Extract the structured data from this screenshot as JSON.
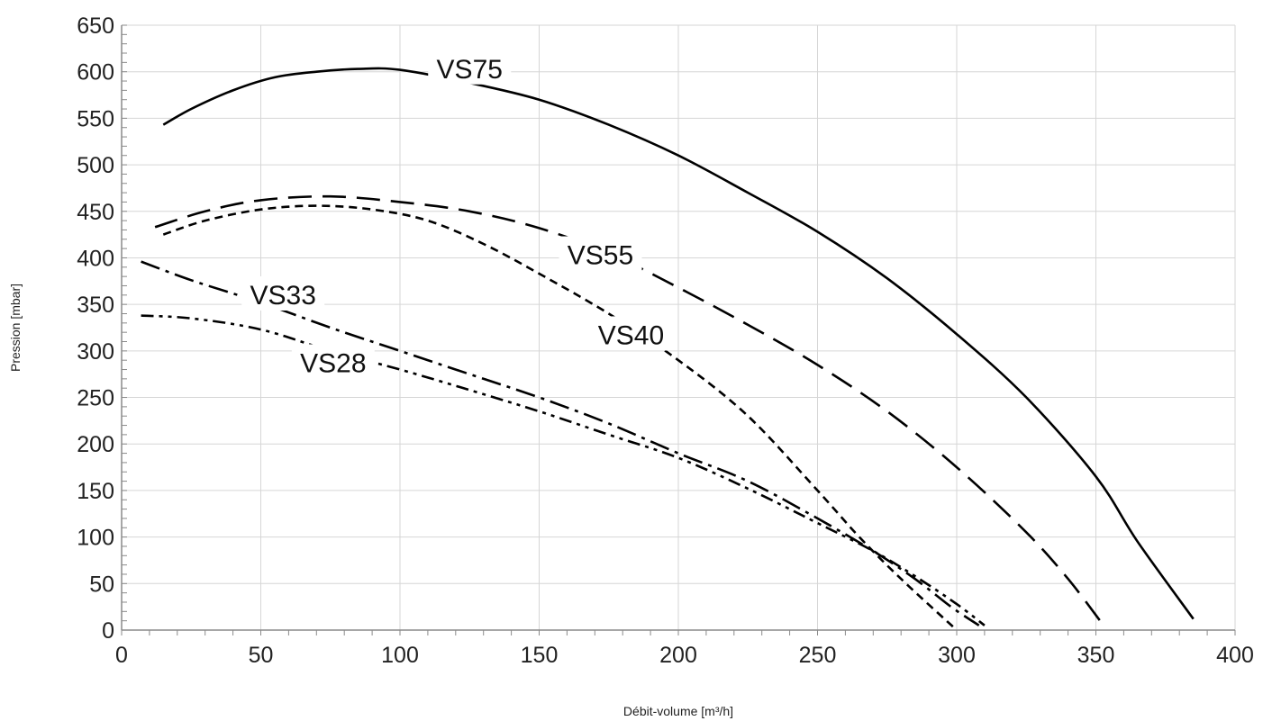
{
  "chart_data": {
    "type": "line",
    "title": "",
    "xlabel": "Débit-volume [m³/h]",
    "ylabel": "Pression [mbar]",
    "xlim": [
      0,
      400
    ],
    "ylim": [
      0,
      650
    ],
    "x_ticks": [
      0,
      50,
      100,
      150,
      200,
      250,
      300,
      350,
      400
    ],
    "y_ticks": [
      0,
      50,
      100,
      150,
      200,
      250,
      300,
      350,
      400,
      450,
      500,
      550,
      600,
      650
    ],
    "grid": true,
    "legend": "none",
    "series": [
      {
        "name": "VS75",
        "style": "solid",
        "label_at": [
          125,
          598
        ],
        "points": [
          [
            15,
            543
          ],
          [
            25,
            560
          ],
          [
            40,
            580
          ],
          [
            55,
            594
          ],
          [
            70,
            600
          ],
          [
            85,
            603
          ],
          [
            100,
            602
          ],
          [
            125,
            588
          ],
          [
            150,
            570
          ],
          [
            175,
            543
          ],
          [
            200,
            510
          ],
          [
            225,
            470
          ],
          [
            250,
            428
          ],
          [
            275,
            378
          ],
          [
            300,
            318
          ],
          [
            325,
            250
          ],
          [
            350,
            165
          ],
          [
            365,
            95
          ],
          [
            385,
            12
          ]
        ]
      },
      {
        "name": "VS55",
        "style": "long-dash",
        "label_at": [
          172,
          398
        ],
        "points": [
          [
            12,
            433
          ],
          [
            30,
            450
          ],
          [
            50,
            462
          ],
          [
            75,
            466
          ],
          [
            100,
            460
          ],
          [
            125,
            450
          ],
          [
            150,
            432
          ],
          [
            175,
            405
          ],
          [
            200,
            368
          ],
          [
            225,
            328
          ],
          [
            250,
            285
          ],
          [
            275,
            235
          ],
          [
            300,
            175
          ],
          [
            325,
            105
          ],
          [
            340,
            55
          ],
          [
            352,
            8
          ]
        ]
      },
      {
        "name": "VS40",
        "style": "short-dash",
        "label_at": [
          183,
          312
        ],
        "points": [
          [
            15,
            425
          ],
          [
            30,
            440
          ],
          [
            50,
            452
          ],
          [
            70,
            456
          ],
          [
            90,
            452
          ],
          [
            110,
            440
          ],
          [
            130,
            415
          ],
          [
            150,
            383
          ],
          [
            175,
            340
          ],
          [
            200,
            290
          ],
          [
            225,
            230
          ],
          [
            250,
            150
          ],
          [
            265,
            100
          ],
          [
            280,
            55
          ],
          [
            300,
            0
          ]
        ]
      },
      {
        "name": "VS33",
        "style": "dash-dot",
        "label_at": [
          58,
          355
        ],
        "points": [
          [
            7,
            396
          ],
          [
            25,
            376
          ],
          [
            50,
            352
          ],
          [
            75,
            325
          ],
          [
            100,
            300
          ],
          [
            125,
            275
          ],
          [
            150,
            250
          ],
          [
            175,
            222
          ],
          [
            200,
            190
          ],
          [
            225,
            160
          ],
          [
            250,
            120
          ],
          [
            270,
            85
          ],
          [
            285,
            55
          ],
          [
            298,
            25
          ],
          [
            308,
            5
          ]
        ]
      },
      {
        "name": "VS28",
        "style": "dash-dot-dot",
        "label_at": [
          76,
          282
        ],
        "points": [
          [
            7,
            338
          ],
          [
            25,
            335
          ],
          [
            50,
            323
          ],
          [
            75,
            300
          ],
          [
            100,
            280
          ],
          [
            125,
            258
          ],
          [
            150,
            235
          ],
          [
            175,
            210
          ],
          [
            200,
            185
          ],
          [
            225,
            152
          ],
          [
            250,
            115
          ],
          [
            270,
            85
          ],
          [
            285,
            58
          ],
          [
            300,
            28
          ],
          [
            310,
            5
          ]
        ]
      }
    ]
  }
}
